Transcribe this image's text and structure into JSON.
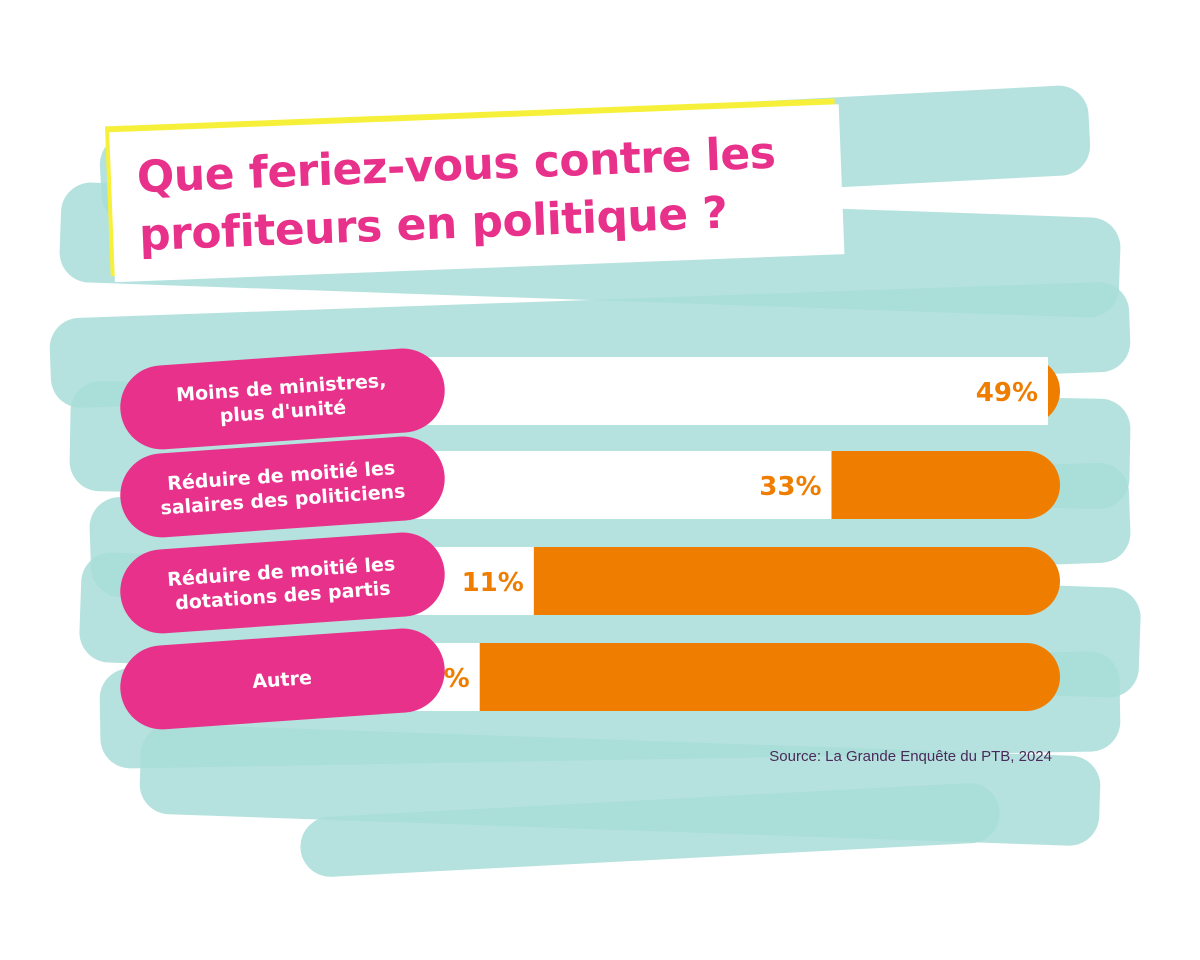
{
  "chart_data": {
    "type": "bar",
    "orientation": "horizontal",
    "title": "Que feriez-vous contre les profiteurs en politique ?",
    "categories": [
      "Moins de ministres, plus d'unité",
      "Réduire de moitié les salaires des politiciens",
      "Réduire de moitié les dotations des partis",
      "Autre"
    ],
    "label_lines": [
      [
        "Moins de ministres,",
        "plus d'unité"
      ],
      [
        "Réduire de moitié les",
        "salaires des politiciens"
      ],
      [
        "Réduire de moitié les",
        "dotations des partis"
      ],
      [
        "Autre"
      ]
    ],
    "values": [
      49,
      33,
      11,
      7
    ],
    "value_labels": [
      "49%",
      "33%",
      "11%",
      "7%"
    ],
    "unit": "%",
    "source": "Source: La Grande Enquête du PTB, 2024",
    "colors": {
      "label_bg": "#e8318a",
      "bar_fill": "#ffffff",
      "bar_track": "#ee7d00",
      "value_text": "#ee7d00",
      "brush": "#a8ddd8",
      "title": "#e8318a",
      "highlight": "#f7f03a"
    }
  }
}
